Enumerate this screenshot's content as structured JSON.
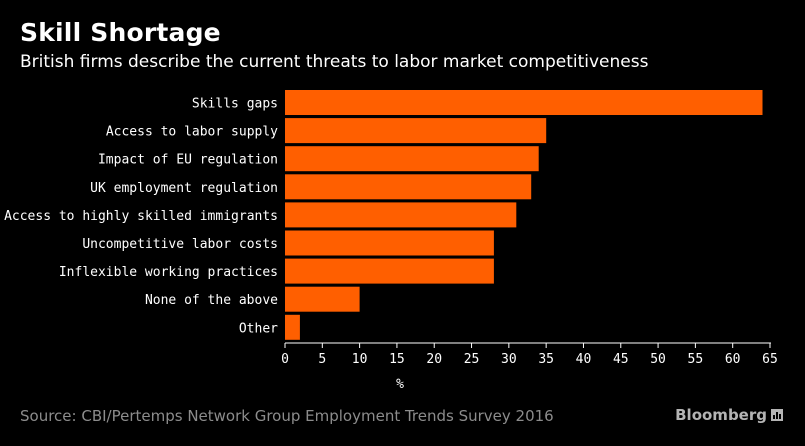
{
  "header": {
    "title": "Skill Shortage",
    "subtitle": "British firms describe the current threats to labor market competitiveness"
  },
  "footer": {
    "source": "Source: CBI/Pertemps Network Group Employment Trends Survey 2016",
    "brand": "Bloomberg",
    "brand_icon": "bloomberg-chart-icon"
  },
  "colors": {
    "background": "#000000",
    "bar": "#ff5f00",
    "text": "#ffffff",
    "axis": "#ffffff",
    "muted": "#8c8c8c"
  },
  "chart_data": {
    "type": "bar",
    "orientation": "horizontal",
    "title": "Skill Shortage",
    "subtitle": "British firms describe the current threats to labor market competitiveness",
    "categories": [
      "Skills gaps",
      "Access to labor supply",
      "Impact of EU regulation",
      "UK employment regulation",
      "Access to highly skilled immigrants",
      "Uncompetitive labor costs",
      "Inflexible working practices",
      "None of the above",
      "Other"
    ],
    "values": [
      64,
      35,
      34,
      33,
      31,
      28,
      28,
      10,
      2
    ],
    "xlabel": "%",
    "ylabel": "",
    "xlim": [
      0,
      65
    ],
    "xticks": [
      0,
      5,
      10,
      15,
      20,
      25,
      30,
      35,
      40,
      45,
      50,
      55,
      60,
      65
    ],
    "grid": false
  }
}
